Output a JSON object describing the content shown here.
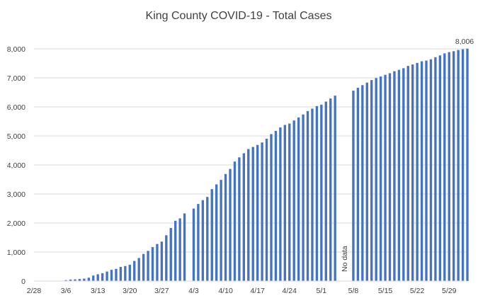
{
  "chart_data": {
    "type": "bar",
    "title": "King County COVID-19 - Total Cases",
    "xlabel": "",
    "ylabel": "",
    "ylim": [
      0,
      8000
    ],
    "y_ticks": [
      "0",
      "1,000",
      "2,000",
      "3,000",
      "4,000",
      "5,000",
      "6,000",
      "7,000",
      "8,000"
    ],
    "x_start": "2/28",
    "x_end": "5/29",
    "x_ticks": [
      "2/28",
      "3/6",
      "3/13",
      "3/20",
      "3/27",
      "4/3",
      "4/10",
      "4/17",
      "4/24",
      "5/1",
      "5/8",
      "5/15",
      "5/22",
      "5/29"
    ],
    "grid": true,
    "bar_color": "#4472C4",
    "values": [
      0,
      0,
      0,
      0,
      0,
      0,
      0,
      31,
      51,
      58,
      71,
      83,
      116,
      190,
      234,
      270,
      328,
      387,
      420,
      488,
      518,
      562,
      693,
      793,
      934,
      1040,
      1170,
      1277,
      1359,
      1577,
      1828,
      2077,
      2159,
      2330,
      null,
      2496,
      2656,
      2787,
      2898,
      3167,
      3331,
      3486,
      3688,
      3863,
      4117,
      4262,
      4402,
      4549,
      4620,
      4689,
      4775,
      4902,
      5063,
      5174,
      5293,
      5379,
      5426,
      5532,
      5637,
      5739,
      5857,
      5940,
      6028,
      6077,
      6182,
      6290,
      6388,
      null,
      null,
      null,
      6559,
      6658,
      6749,
      6837,
      6924,
      6993,
      7047,
      7104,
      7160,
      7230,
      7277,
      7333,
      7412,
      7462,
      7515,
      7571,
      7596,
      7641,
      7713,
      7774,
      7844,
      7885,
      7919,
      7961,
      7985,
      8006
    ],
    "annotations": {
      "last_value_label": "8,006",
      "gap_label": "No data"
    }
  }
}
